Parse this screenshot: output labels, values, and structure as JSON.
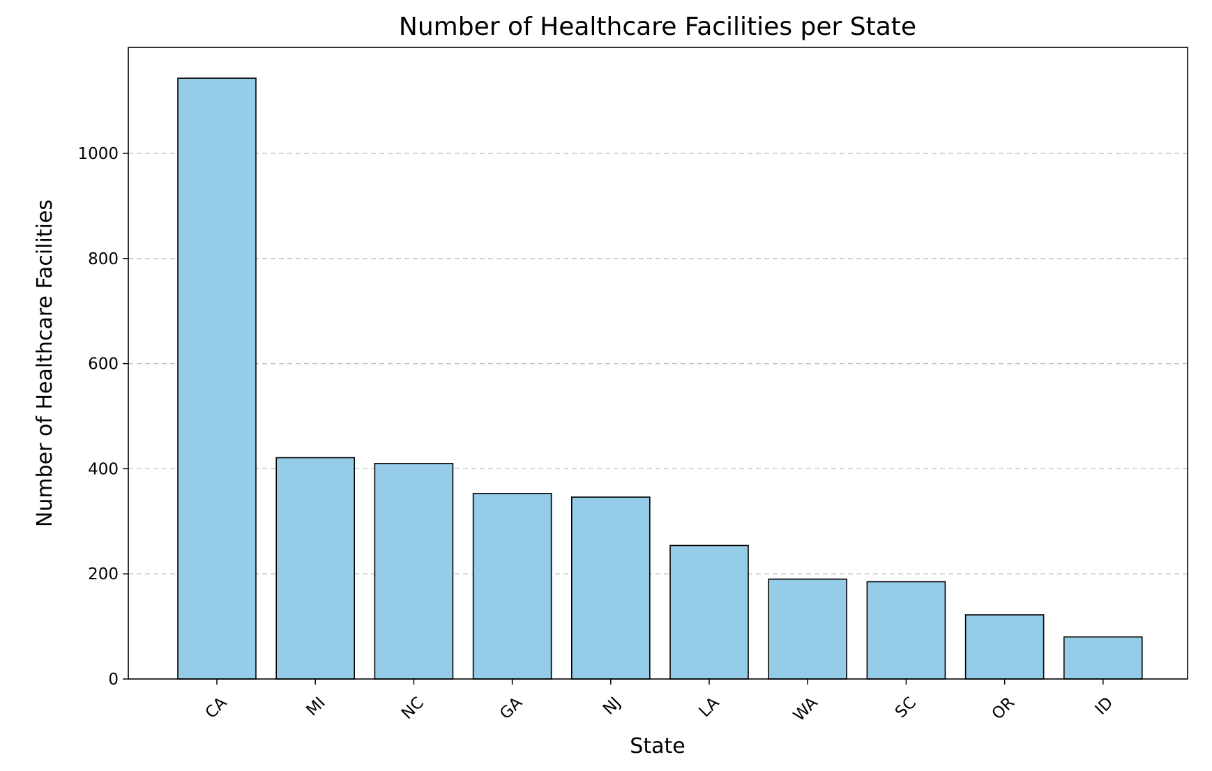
{
  "chart_data": {
    "type": "bar",
    "title": "Number of Healthcare Facilities per State",
    "xlabel": "State",
    "ylabel": "Number of Healthcare Facilities",
    "categories": [
      "CA",
      "MI",
      "NC",
      "GA",
      "NJ",
      "LA",
      "WA",
      "SC",
      "OR",
      "ID"
    ],
    "values": [
      1143,
      421,
      410,
      353,
      346,
      254,
      190,
      185,
      122,
      80
    ],
    "ylim": [
      0,
      1200
    ],
    "yticks": [
      0,
      200,
      400,
      600,
      800,
      1000
    ],
    "ytick_labels": [
      "0",
      "200",
      "400",
      "600",
      "800",
      "1000"
    ],
    "grid": "y-dashed",
    "x_tick_rotation": 45
  },
  "colors": {
    "bar_fill": "#95cce8",
    "bar_edge": "#000000",
    "grid": "#bdbdbd"
  }
}
